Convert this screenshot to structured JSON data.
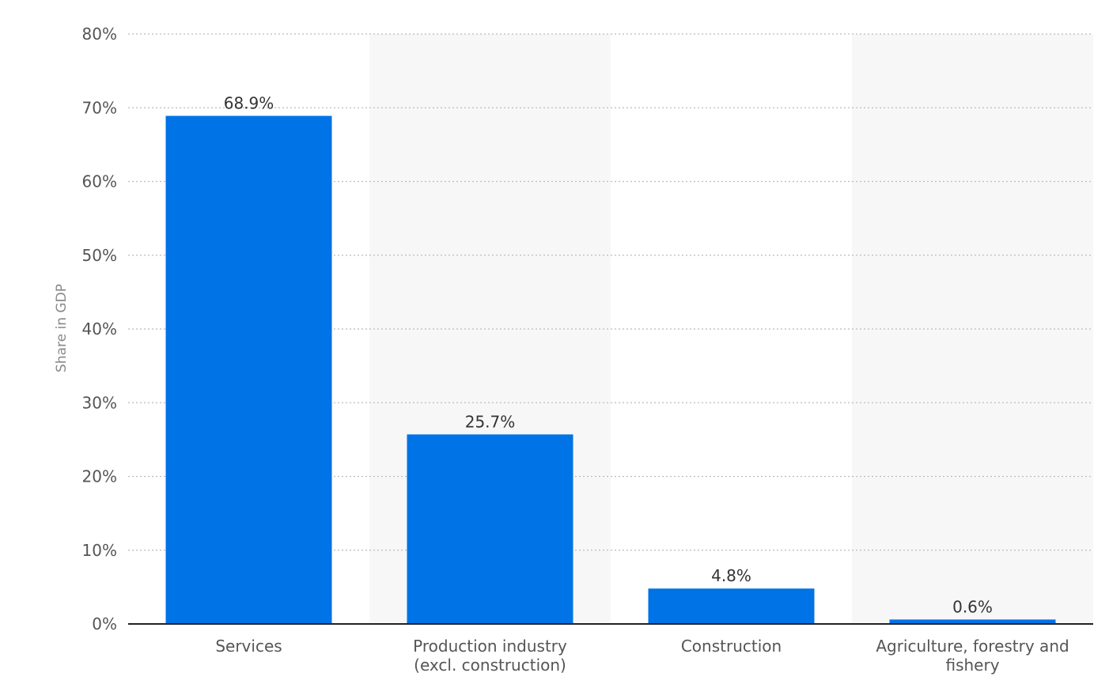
{
  "chart_data": {
    "type": "bar",
    "categories": [
      [
        "Services"
      ],
      [
        "Production industry",
        "(excl. construction)"
      ],
      [
        "Construction"
      ],
      [
        "Agriculture, forestry and",
        "fishery"
      ]
    ],
    "values": [
      68.9,
      25.7,
      4.8,
      0.6
    ],
    "value_labels": [
      "68.9%",
      "25.7%",
      "4.8%",
      "0.6%"
    ],
    "ylabel": "Share in GDP",
    "ylim": [
      0,
      80
    ],
    "yticks": [
      0,
      10,
      20,
      30,
      40,
      50,
      60,
      70,
      80
    ],
    "ytick_labels": [
      "0%",
      "10%",
      "20%",
      "30%",
      "40%",
      "50%",
      "60%",
      "70%",
      "80%"
    ],
    "grid": true,
    "legend": "none",
    "colors": {
      "bar": "#0073e6",
      "band": "#f7f7f7",
      "grid": "#bbbbbb",
      "axis": "#222222"
    }
  }
}
